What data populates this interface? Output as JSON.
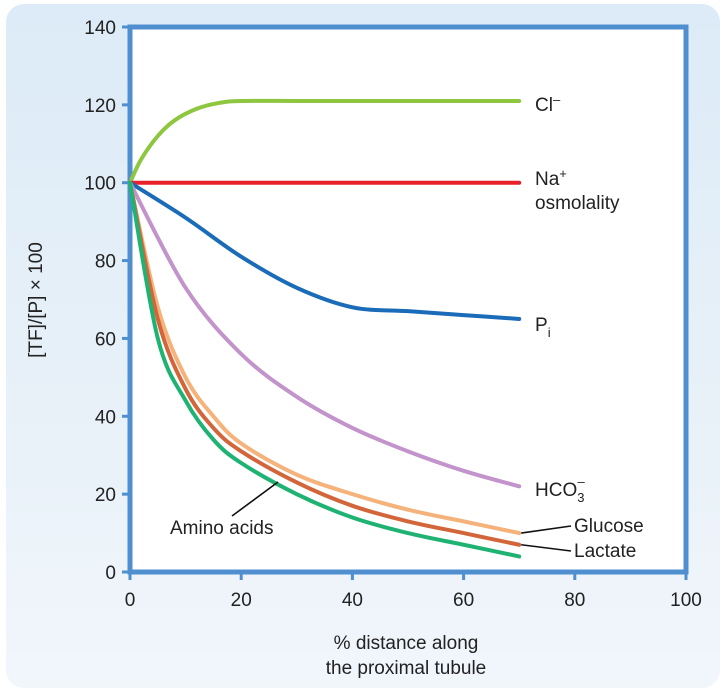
{
  "chart_data": {
    "type": "line",
    "title": "",
    "xlabel_lines": [
      "% distance along",
      "the proximal tubule"
    ],
    "ylabel": "[TF]/[P] × 100",
    "xlim": [
      0,
      100
    ],
    "ylim": [
      0,
      140
    ],
    "xticks": [
      "0",
      "20",
      "40",
      "60",
      "80",
      "100"
    ],
    "yticks": [
      "0",
      "20",
      "40",
      "60",
      "80",
      "100",
      "120",
      "140"
    ],
    "grid": false,
    "series": [
      {
        "name": "Cl⁻",
        "label_main": "Cl",
        "label_sup": "–",
        "color": "#8dc63f",
        "x": [
          0,
          2,
          5,
          8,
          12,
          16,
          20,
          30,
          40,
          50,
          60,
          70
        ],
        "y": [
          100,
          106,
          112,
          116,
          119,
          120.5,
          121,
          121,
          121,
          121,
          121,
          121
        ]
      },
      {
        "name": "Na⁺ osmolality",
        "label_main": "Na",
        "label_sup": "+",
        "label_line2": "osmolality",
        "color": "#e8202a",
        "x": [
          0,
          70
        ],
        "y": [
          100,
          100
        ]
      },
      {
        "name": "Pi",
        "label_main": "P",
        "label_sub": "i",
        "color": "#1a6bb8",
        "x": [
          0,
          10,
          20,
          30,
          40,
          50,
          60,
          70
        ],
        "y": [
          100,
          91,
          81,
          73,
          68,
          67,
          66,
          65
        ]
      },
      {
        "name": "HCO3⁻",
        "label_main": "HCO",
        "label_sub": "3",
        "label_sup": "–",
        "color": "#c393cc",
        "x": [
          0,
          10,
          20,
          30,
          40,
          50,
          60,
          70
        ],
        "y": [
          100,
          73,
          56,
          45,
          37,
          31,
          26,
          22
        ]
      },
      {
        "name": "Glucose",
        "label_main": "Glucose",
        "color": "#f5b27a",
        "x": [
          0,
          5,
          10,
          15,
          20,
          30,
          40,
          50,
          60,
          70
        ],
        "y": [
          100,
          68,
          50,
          40,
          33,
          25,
          20,
          16,
          13,
          10
        ]
      },
      {
        "name": "Lactate",
        "label_main": "Lactate",
        "color": "#d2663a",
        "x": [
          0,
          5,
          10,
          15,
          20,
          30,
          40,
          50,
          60,
          70
        ],
        "y": [
          100,
          65,
          47,
          37,
          31,
          23,
          17,
          13,
          10,
          7
        ]
      },
      {
        "name": "Amino acids",
        "label_main": "Amino acids",
        "color": "#1eb373",
        "x": [
          0,
          5,
          10,
          15,
          20,
          30,
          40,
          50,
          60,
          70
        ],
        "y": [
          100,
          60,
          44,
          34,
          28,
          20,
          14,
          10,
          7,
          4
        ]
      }
    ]
  }
}
